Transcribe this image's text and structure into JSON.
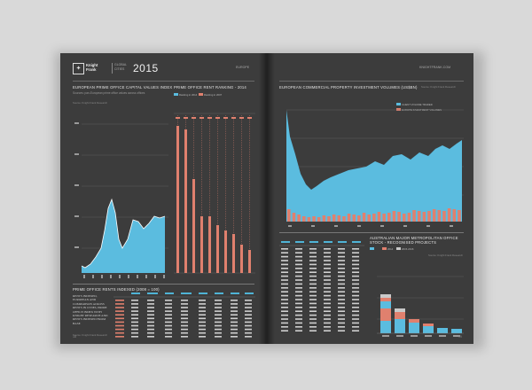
{
  "brand": {
    "name_line1": "Knight",
    "name_line2": "Frank",
    "sub_line1": "GLOBAL",
    "sub_line2": "CITIES",
    "year": "2015"
  },
  "left_page": {
    "runhead": "EUROPE",
    "chart1": {
      "title": "EUROPEAN PRIME OFFICE CAPITAL VALUES INDEX",
      "subtitle": "Sources: pan-European prime office values across offices",
      "source": "Source: Knight Frank Research"
    },
    "chart2": {
      "title": "PRIME OFFICE RENT RANKING - 2014",
      "legend": [
        "Ranking in 2014",
        "Ranking in 2007"
      ]
    },
    "table": {
      "title": "PRIME OFFICE RENTS INDEXED (2008 = 100)",
      "side_text": "RENTS INDEXED, EUROPEAN AND COMPARISON ACROSS RENTS IN CITIES, PRIME OFFICE INDEX WITH KNIGHT RESEARCH AND RENTS INDEXED FROM BASE",
      "source": "Source: Knight Frank Research"
    },
    "page_number": "18"
  },
  "right_page": {
    "runhead": "KNIGHTFRANK.COM",
    "chart3": {
      "title": "EUROPEAN COMMERCIAL PROPERTY INVESTMENT VOLUMES (US$BN)",
      "source": "Source: Knight Frank Research",
      "legend": [
        "CLIENT VOLUME TRADED",
        "EUROPE INVESTMENT VOLUMES"
      ]
    },
    "chart4": {
      "title": "AUSTRALIAN MAJOR METROPOLITAN OFFICE STOCK - RECOGNISED PROJECTS",
      "legend": [
        "",
        "2014",
        "2015-2016"
      ],
      "source": "Source: Knight Frank Research"
    },
    "page_number": "19"
  },
  "colors": {
    "blue": "#5bbcdf",
    "salmon": "#e0806e",
    "page": "#3c3c3c"
  }
}
